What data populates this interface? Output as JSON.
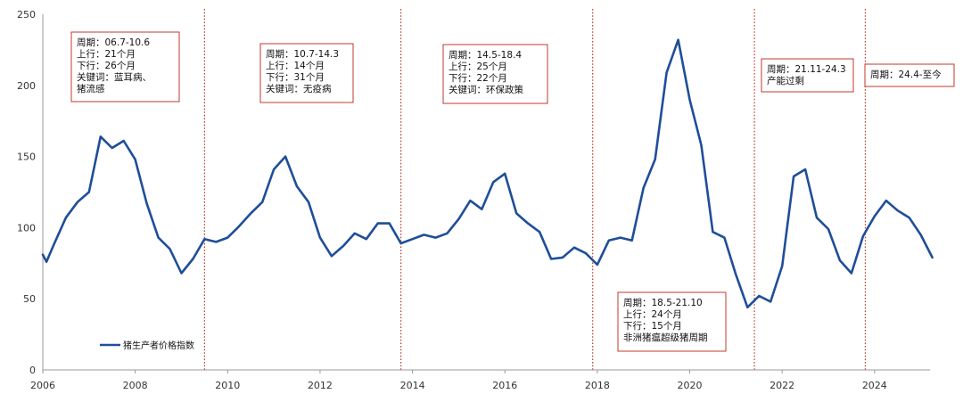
{
  "chart_data": {
    "type": "line",
    "series": [
      {
        "name": "猪生产者价格指数",
        "color": "#1f4e99",
        "x": [
          2006.0,
          2006.08,
          2006.25,
          2006.5,
          2006.75,
          2007.0,
          2007.25,
          2007.5,
          2007.75,
          2008.0,
          2008.25,
          2008.5,
          2008.75,
          2009.0,
          2009.25,
          2009.5,
          2009.75,
          2010.0,
          2010.25,
          2010.5,
          2010.75,
          2011.0,
          2011.25,
          2011.5,
          2011.75,
          2012.0,
          2012.25,
          2012.5,
          2012.75,
          2013.0,
          2013.25,
          2013.5,
          2013.75,
          2014.0,
          2014.25,
          2014.5,
          2014.75,
          2015.0,
          2015.25,
          2015.5,
          2015.75,
          2016.0,
          2016.25,
          2016.5,
          2016.75,
          2017.0,
          2017.25,
          2017.5,
          2017.75,
          2018.0,
          2018.25,
          2018.5,
          2018.75,
          2019.0,
          2019.25,
          2019.5,
          2019.75,
          2020.0,
          2020.25,
          2020.5,
          2020.75,
          2021.0,
          2021.25,
          2021.5,
          2021.75,
          2022.0,
          2022.25,
          2022.5,
          2022.75,
          2023.0,
          2023.25,
          2023.5,
          2023.75,
          2024.0,
          2024.25,
          2024.5,
          2024.75,
          2025.0,
          2025.25
        ],
        "values": [
          81,
          76,
          89,
          107,
          118,
          125,
          164,
          156,
          161,
          148,
          117,
          93,
          85,
          68,
          78,
          92,
          90,
          93,
          101,
          110,
          118,
          141,
          150,
          129,
          118,
          93,
          80,
          87,
          96,
          92,
          103,
          103,
          89,
          92,
          95,
          93,
          96,
          106,
          119,
          113,
          132,
          138,
          110,
          103,
          97,
          78,
          79,
          86,
          82,
          74,
          91,
          93,
          91,
          128,
          148,
          209,
          232,
          190,
          158,
          97,
          93,
          67,
          44,
          52,
          48,
          73,
          136,
          141,
          107,
          99,
          77,
          68,
          94,
          108,
          119,
          112,
          107,
          95,
          79
        ]
      }
    ],
    "ylim": [
      0,
      250
    ],
    "xlim": [
      2006,
      2025.2
    ],
    "yticks": [
      "0",
      "50",
      "100",
      "150",
      "200",
      "250"
    ],
    "xticks": [
      "2006",
      "2008",
      "2010",
      "2012",
      "2014",
      "2016",
      "2018",
      "2020",
      "2022",
      "2024"
    ],
    "xtick_values": [
      2006,
      2008,
      2010,
      2012,
      2014,
      2016,
      2018,
      2020,
      2022,
      2024
    ],
    "dividers": [
      2009.5,
      2013.75,
      2017.9,
      2021.4,
      2023.8
    ],
    "divider_color": "#c0392b",
    "grid": false,
    "legend_position": "bottom-left",
    "annotations": [
      {
        "lines": [
          "周期：06.7-10.6",
          "上行：21个月",
          "下行：26个月",
          "关键词：蓝耳病、",
          "猪流感"
        ]
      },
      {
        "lines": [
          "周期：10.7-14.3",
          "上行：14个月",
          "下行：31个月",
          "关键词：无疫病"
        ]
      },
      {
        "lines": [
          "周期：14.5-18.4",
          "上行：25个月",
          "下行：22个月",
          "关键词：环保政策"
        ]
      },
      {
        "lines": [
          "周期：18.5-21.10",
          "上行：24个月",
          "下行：15个月",
          "非洲猪瘟超级猪周期"
        ]
      },
      {
        "lines": [
          "周期：21.11-24.3",
          "产能过剩"
        ]
      },
      {
        "lines": [
          "周期：24.4-至今"
        ]
      }
    ]
  }
}
